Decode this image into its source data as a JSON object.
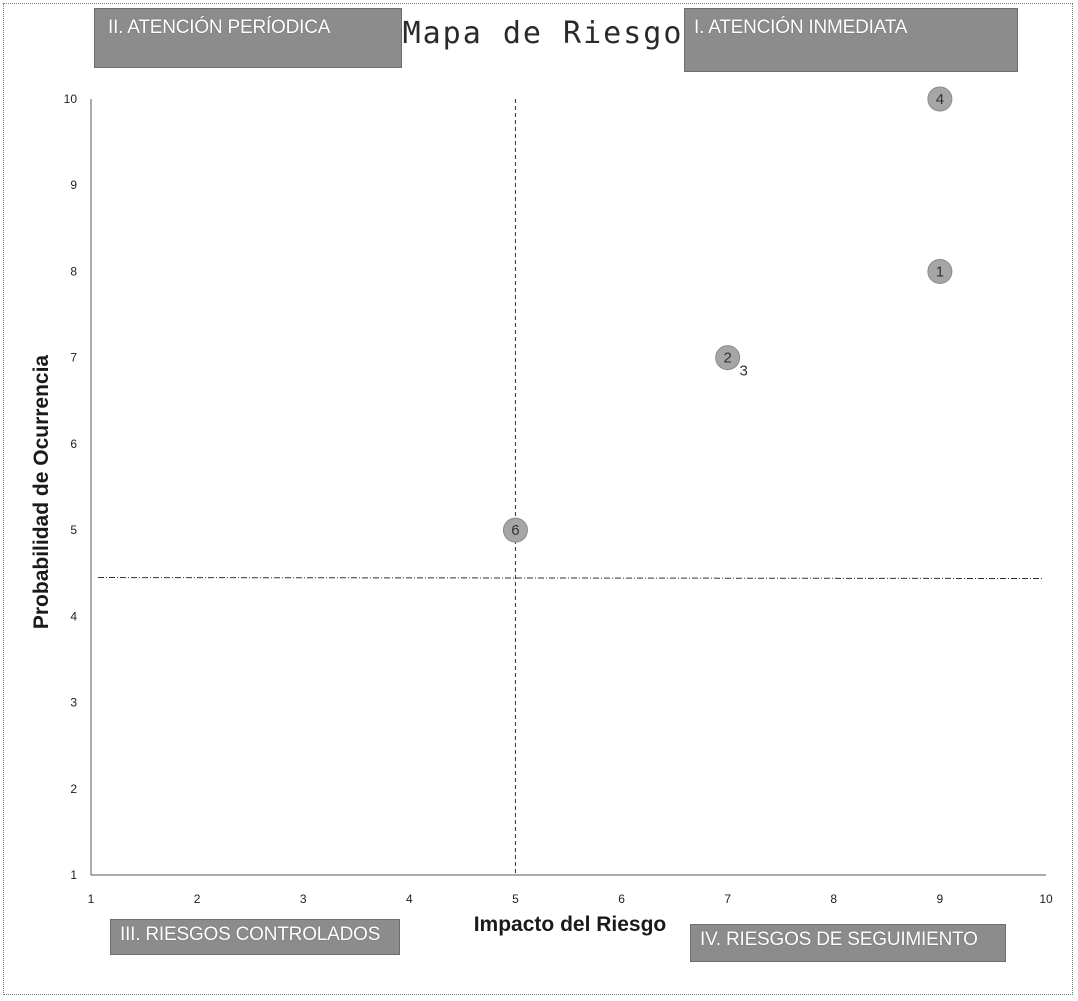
{
  "chart_data": {
    "type": "scatter",
    "title": "Mapa de Riesgo",
    "xlabel": "Impacto del Riesgo",
    "ylabel": "Probabilidad de Ocurrencia",
    "xlim": [
      1,
      10
    ],
    "ylim": [
      1,
      10
    ],
    "x_ticks": [
      "1",
      "2",
      "3",
      "4",
      "5",
      "6",
      "7",
      "8",
      "9",
      "10"
    ],
    "y_ticks": [
      "1",
      "2",
      "3",
      "4",
      "5",
      "6",
      "7",
      "8",
      "9",
      "10"
    ],
    "divider_x": 5,
    "divider_y": 4.45,
    "grid": false,
    "points": [
      {
        "label": "4",
        "x": 9,
        "y": 10
      },
      {
        "label": "1",
        "x": 9,
        "y": 8
      },
      {
        "label": "2",
        "x": 7,
        "y": 7
      },
      {
        "label": "3",
        "x": 7,
        "y": 7
      },
      {
        "label": "6",
        "x": 5,
        "y": 5
      }
    ],
    "quadrants": {
      "top_left": "II. ATENCIÓN PERÍODICA",
      "top_right": "I. ATENCIÓN INMEDIATA",
      "bottom_left": "III. RIESGOS CONTROLADOS",
      "bottom_right": "IV. RIESGOS DE SEGUIMIENTO"
    },
    "colors": {
      "marker": "#a6a6a6",
      "quadrant_box": "#8c8c8c"
    }
  }
}
